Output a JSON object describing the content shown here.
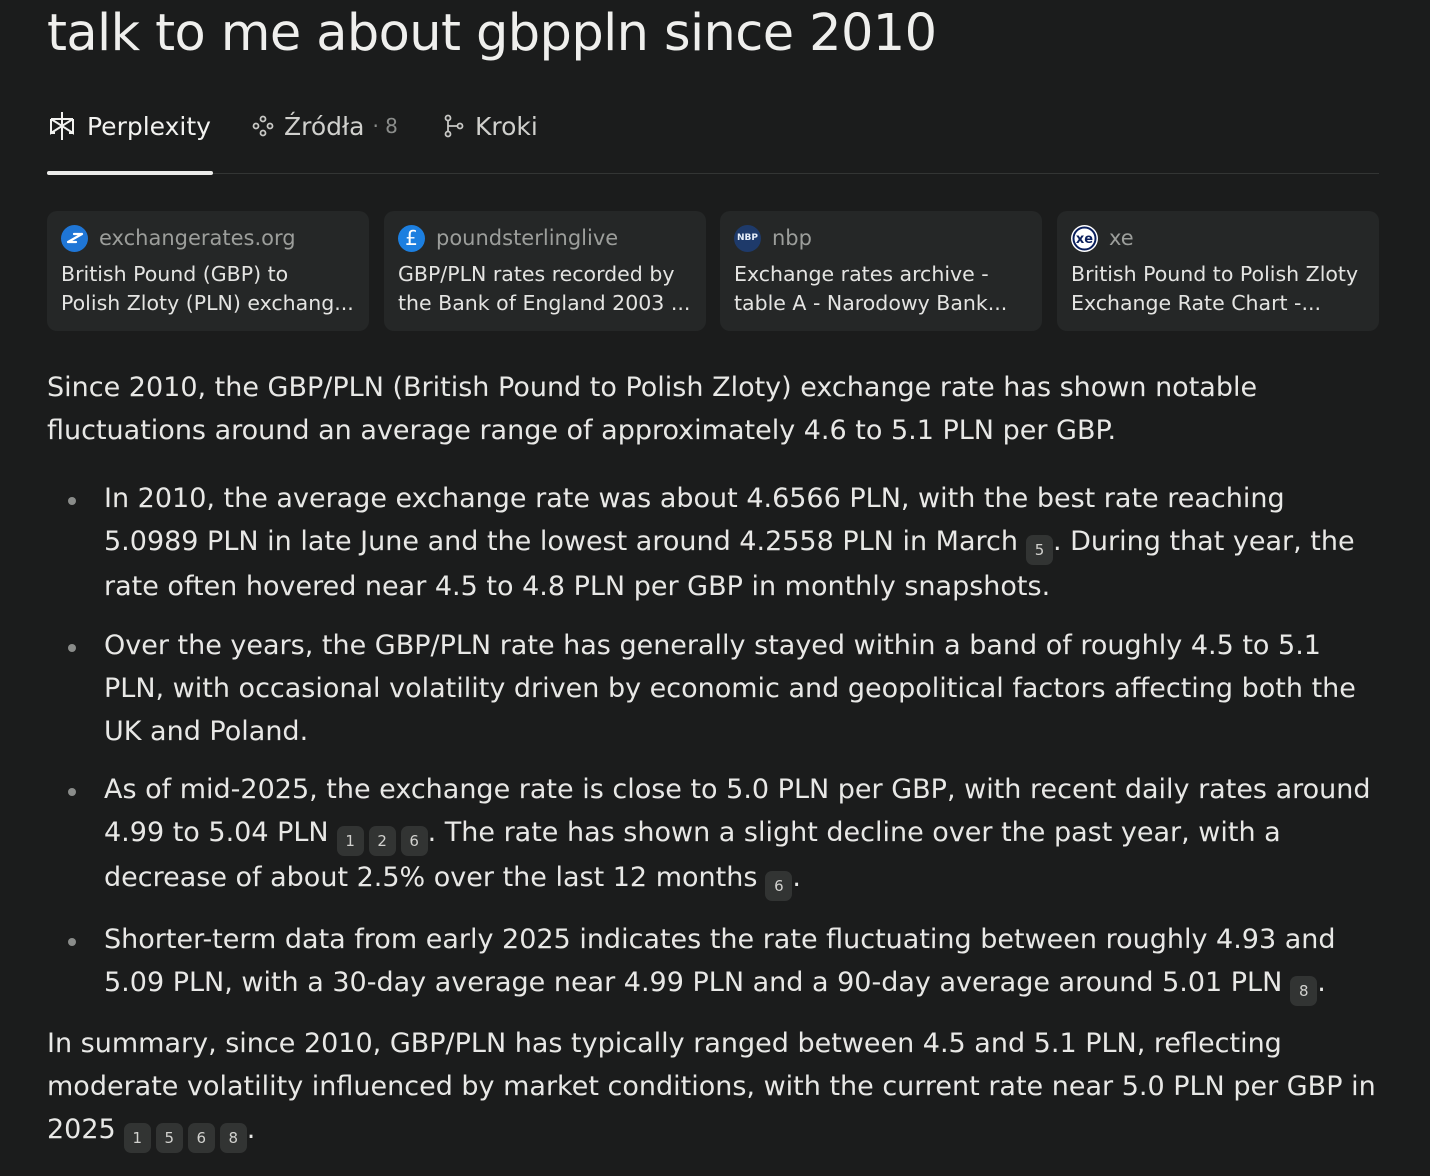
{
  "title": "talk to me about gbppln since 2010",
  "tabs": {
    "perplexity": "Perplexity",
    "sources": "Źródła",
    "sources_count": "· 8",
    "steps": "Kroki"
  },
  "sources": [
    {
      "site": "exchangerates.org",
      "title_1": "British Pound (GBP) to",
      "title_2": "Polish Zloty (PLN) exchang..."
    },
    {
      "site": "poundsterlinglive",
      "title_1": "GBP/PLN rates recorded by",
      "title_2": "the Bank of England 2003 ..."
    },
    {
      "site": "nbp",
      "title_1": "Exchange rates archive -",
      "title_2": "table A - Narodowy Bank..."
    },
    {
      "site": "xe",
      "title_1": "British Pound to Polish Zloty",
      "title_2": "Exchange Rate Chart -..."
    }
  ],
  "favicons": {
    "nbp_text": "NBP",
    "xe_text": "xe",
    "pound_text": "£"
  },
  "answer": {
    "intro": "Since 2010, the GBP/PLN (British Pound to Polish Zloty) exchange rate has shown notable fluctuations around an average range of approximately 4.6 to 5.1 PLN per GBP.",
    "b1_a": "In 2010, the average exchange rate was about 4.6566 PLN, with the best rate reaching 5.0989 PLN in late June and the lowest around 4.2558 PLN in March",
    "b1_b": ". During that year, the rate often hovered near 4.5 to 4.8 PLN per GBP in monthly snapshots.",
    "b2": "Over the years, the GBP/PLN rate has generally stayed within a band of roughly 4.5 to 5.1 PLN, with occasional volatility driven by economic and geopolitical factors affecting both the UK and Poland.",
    "b3_a": "As of mid-2025, the exchange rate is close to 5.0 PLN per GBP, with recent daily rates around 4.99 to 5.04 PLN",
    "b3_b": ". The rate has shown a slight decline over the past year, with a decrease of about 2.5% over the last 12 months",
    "b3_c": ".",
    "b4_a": "Shorter-term data from early 2025 indicates the rate fluctuating between roughly 4.93 and 5.09 PLN, with a 30-day average near 4.99 PLN and a 90-day average around 5.01 PLN",
    "b4_b": ".",
    "summary_a": "In summary, since 2010, GBP/PLN has typically ranged between 4.5 and 5.1 PLN, reflecting moderate volatility influenced by market conditions, with the current rate near 5.0 PLN per GBP in 2025",
    "summary_b": "."
  },
  "citations": {
    "b1": [
      "5"
    ],
    "b3_first": [
      "1",
      "2",
      "6"
    ],
    "b3_second": [
      "6"
    ],
    "b4": [
      "8"
    ],
    "summary": [
      "1",
      "5",
      "6",
      "8"
    ]
  },
  "colors": {
    "background": "#1b1c1c",
    "card": "#252727",
    "text": "#e8e8e6",
    "muted": "#9c9e9b"
  }
}
